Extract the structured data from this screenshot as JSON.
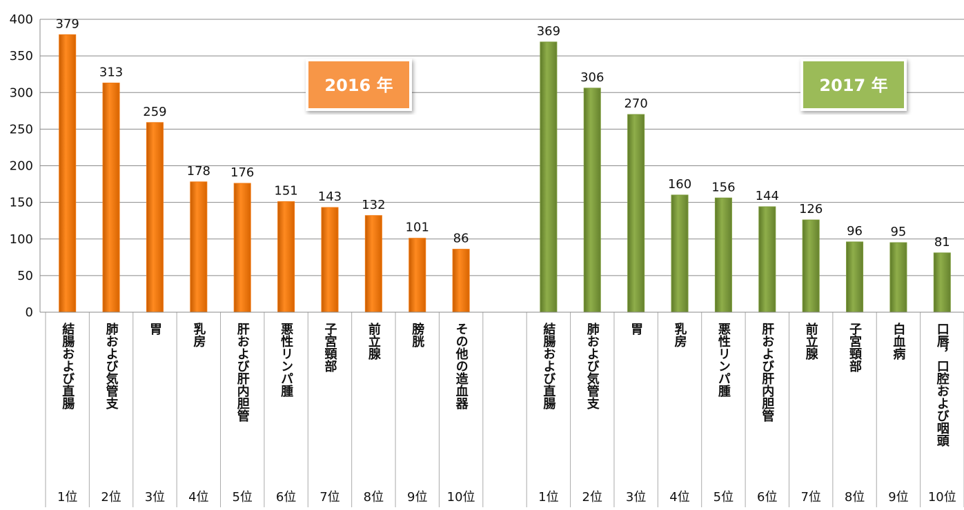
{
  "chart_data": {
    "type": "bar",
    "ylim": [
      0,
      400
    ],
    "yticks": [
      0,
      50,
      100,
      150,
      200,
      250,
      300,
      350,
      400
    ],
    "grid": true,
    "groups": [
      {
        "label": "2016 年",
        "color": "#f07810",
        "badge_color": "#f79646",
        "categories": [
          "結腸および直腸",
          "肺および気管支",
          "胃",
          "乳房",
          "肝および肝内胆管",
          "悪性リンパ腫",
          "子宮頸部",
          "前立腺",
          "膀胱",
          "その他の造血器"
        ],
        "ranks": [
          "1位",
          "2位",
          "3位",
          "4位",
          "5位",
          "6位",
          "7位",
          "8位",
          "9位",
          "10位"
        ],
        "values": [
          379,
          313,
          259,
          178,
          176,
          151,
          143,
          132,
          101,
          86
        ]
      },
      {
        "label": "2017 年",
        "color": "#7b9a3a",
        "badge_color": "#9bbb59",
        "categories": [
          "結腸および直腸",
          "肺および気管支",
          "胃",
          "乳房",
          "悪性リンパ腫",
          "肝および肝内胆管",
          "前立腺",
          "子宮頸部",
          "白血病",
          "口唇，口腔および咽頭"
        ],
        "ranks": [
          "1位",
          "2位",
          "3位",
          "4位",
          "5位",
          "6位",
          "7位",
          "8位",
          "9位",
          "10位"
        ],
        "values": [
          369,
          306,
          270,
          160,
          156,
          144,
          126,
          96,
          95,
          81
        ]
      }
    ]
  }
}
